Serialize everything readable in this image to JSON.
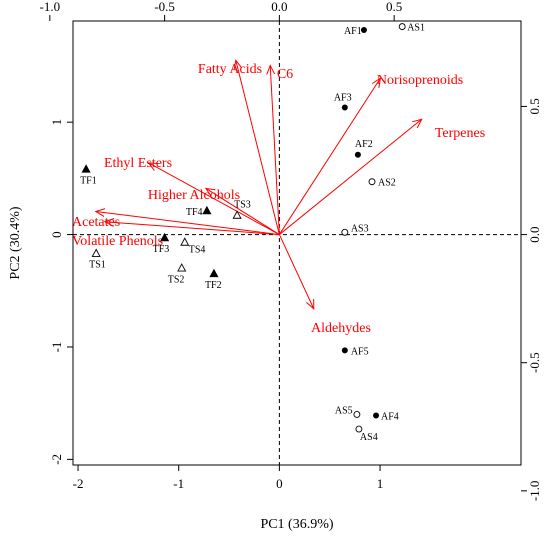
{
  "chart_data": {
    "type": "scatter",
    "subtype": "pca-biplot",
    "xlabel": "PC1 (36.9%)",
    "ylabel": "PC2 (30.4%)",
    "xlim": [
      -2.05,
      2.4
    ],
    "ylim": [
      -2.05,
      1.9
    ],
    "x_ticks": [
      "-2",
      "-1",
      "0",
      "1"
    ],
    "y_ticks": [
      "-2",
      "-1",
      "0",
      "1"
    ],
    "top_ticks": [
      "-1.0",
      "-0.5",
      "0.0",
      "0.5"
    ],
    "right_ticks": [
      "-1.0",
      "-0.5",
      "0.0",
      "0.5"
    ],
    "secondary_scale": 2.28,
    "colors": {
      "vectors": "#ff0000",
      "points": "#000000",
      "frame": "#000000"
    },
    "legend": "none",
    "grid": false,
    "reference_lines": "dashed lines at x = 0 and y = 0",
    "series": [
      {
        "marker": "filled-circle",
        "points": [
          {
            "label": "AF1",
            "x": 0.84,
            "y": 1.82
          },
          {
            "label": "AF2",
            "x": 0.78,
            "y": 0.71
          },
          {
            "label": "AF3",
            "x": 0.65,
            "y": 1.13
          },
          {
            "label": "AF4",
            "x": 0.96,
            "y": -1.61
          },
          {
            "label": "AF5",
            "x": 0.65,
            "y": -1.03
          }
        ]
      },
      {
        "marker": "open-circle",
        "points": [
          {
            "label": "AS1",
            "x": 1.22,
            "y": 1.85
          },
          {
            "label": "AS2",
            "x": 0.92,
            "y": 0.47
          },
          {
            "label": "AS3",
            "x": 0.65,
            "y": 0.02
          },
          {
            "label": "AS4",
            "x": 0.79,
            "y": -1.73
          },
          {
            "label": "AS5",
            "x": 0.77,
            "y": -1.6
          }
        ]
      },
      {
        "marker": "filled-triangle",
        "points": [
          {
            "label": "TF1",
            "x": -1.92,
            "y": 0.58
          },
          {
            "label": "TF2",
            "x": -0.65,
            "y": -0.35
          },
          {
            "label": "TF3",
            "x": -1.14,
            "y": -0.03
          },
          {
            "label": "TF4",
            "x": -0.72,
            "y": 0.21
          }
        ]
      },
      {
        "marker": "open-triangle",
        "points": [
          {
            "label": "TS1",
            "x": -1.82,
            "y": -0.17
          },
          {
            "label": "TS2",
            "x": -0.97,
            "y": -0.3
          },
          {
            "label": "TS3",
            "x": -0.42,
            "y": 0.17
          },
          {
            "label": "TS4",
            "x": -0.94,
            "y": -0.07
          }
        ]
      }
    ],
    "loadings": [
      {
        "label": "Fatty Acids",
        "x": -0.19,
        "y": 0.68
      },
      {
        "label": "C6",
        "x": -0.04,
        "y": 0.66
      },
      {
        "label": "Norisoprenoids",
        "x": 0.44,
        "y": 0.61
      },
      {
        "label": "Terpenes",
        "x": 0.62,
        "y": 0.45
      },
      {
        "label": "Ethyl Esters",
        "x": -0.57,
        "y": 0.28
      },
      {
        "label": "Higher Alcohols",
        "x": -0.32,
        "y": 0.18
      },
      {
        "label": "Acetates",
        "x": -0.8,
        "y": 0.09
      },
      {
        "label": "Volatile Phenols",
        "x": -0.76,
        "y": 0.05
      },
      {
        "label": "Aldehydes",
        "x": 0.15,
        "y": -0.29
      }
    ]
  }
}
